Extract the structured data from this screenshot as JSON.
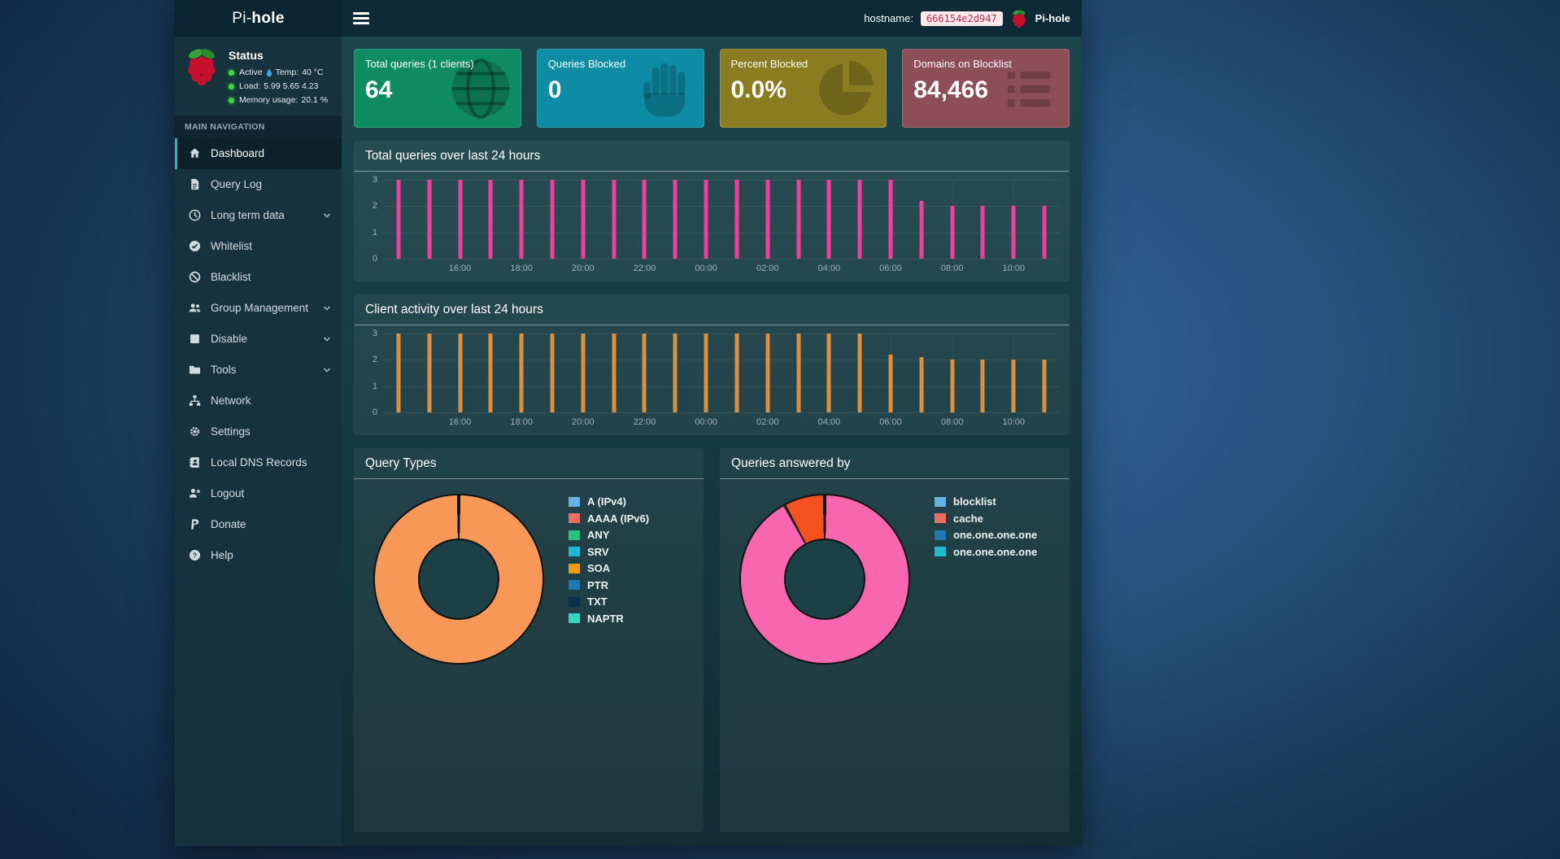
{
  "topbar": {
    "brand_prefix": "Pi-",
    "brand_bold": "hole",
    "hostname_label": "hostname:",
    "hostname_value": "666154e2d947",
    "product_name": "Pi-hole"
  },
  "sidebar": {
    "status": {
      "title": "Status",
      "active_label": "Active",
      "temp_label": "Temp:",
      "temp_value": "40 °C",
      "load_label": "Load:",
      "load_values": "5.99  5.65  4.23",
      "memory_label": "Memory usage:",
      "memory_value": "20.1 %"
    },
    "section_label": "MAIN NAVIGATION",
    "items": [
      {
        "label": "Dashboard",
        "icon": "home-icon",
        "active": true
      },
      {
        "label": "Query Log",
        "icon": "file-icon"
      },
      {
        "label": "Long term data",
        "icon": "clock-icon",
        "expandable": true
      },
      {
        "label": "Whitelist",
        "icon": "check-circle-icon"
      },
      {
        "label": "Blacklist",
        "icon": "ban-icon"
      },
      {
        "label": "Group Management",
        "icon": "users-icon",
        "expandable": true
      },
      {
        "label": "Disable",
        "icon": "stop-icon",
        "expandable": true
      },
      {
        "label": "Tools",
        "icon": "folder-icon",
        "expandable": true
      },
      {
        "label": "Network",
        "icon": "network-icon"
      },
      {
        "label": "Settings",
        "icon": "gears-icon"
      },
      {
        "label": "Local DNS Records",
        "icon": "address-book-icon"
      },
      {
        "label": "Logout",
        "icon": "user-times-icon"
      },
      {
        "label": "Donate",
        "icon": "paypal-icon"
      },
      {
        "label": "Help",
        "icon": "question-circle-icon"
      }
    ]
  },
  "cards": [
    {
      "title": "Total queries (1 clients)",
      "value": "64",
      "color": "#0f8c62",
      "icon": "globe-icon"
    },
    {
      "title": "Queries Blocked",
      "value": "0",
      "color": "#0e8ca6",
      "icon": "hand-icon"
    },
    {
      "title": "Percent Blocked",
      "value": "0.0%",
      "color": "#8c7c21",
      "icon": "pie-chart-icon"
    },
    {
      "title": "Domains on Blocklist",
      "value": "84,466",
      "color": "#8e4e58",
      "icon": "list-icon"
    }
  ],
  "chart_data": [
    {
      "type": "bar",
      "title": "Total queries over last 24 hours",
      "x": [
        "14:00",
        "15:00",
        "16:00",
        "17:00",
        "18:00",
        "19:00",
        "20:00",
        "21:00",
        "22:00",
        "23:00",
        "00:00",
        "01:00",
        "02:00",
        "03:00",
        "04:00",
        "05:00",
        "06:00",
        "07:00",
        "08:00",
        "09:00",
        "10:00",
        "11:00"
      ],
      "values": [
        3,
        3,
        3,
        3,
        3,
        3,
        3,
        3,
        3,
        3,
        3,
        3,
        3,
        3,
        3,
        3,
        3,
        2.2,
        2,
        2,
        2,
        2
      ],
      "ticks": [
        {
          "i": 2,
          "label": "16:00"
        },
        {
          "i": 4,
          "label": "18:00"
        },
        {
          "i": 6,
          "label": "20:00"
        },
        {
          "i": 8,
          "label": "22:00"
        },
        {
          "i": 10,
          "label": "00:00"
        },
        {
          "i": 12,
          "label": "02:00"
        },
        {
          "i": 14,
          "label": "04:00"
        },
        {
          "i": 16,
          "label": "06:00"
        },
        {
          "i": 18,
          "label": "08:00"
        },
        {
          "i": 20,
          "label": "10:00"
        }
      ],
      "ylim": [
        0,
        3
      ],
      "yticks": [
        0,
        1,
        2,
        3
      ],
      "bar_color": "#f23f9d",
      "grid": true,
      "legend_position": "none"
    },
    {
      "type": "bar",
      "title": "Client activity over last 24 hours",
      "x": [
        "14:00",
        "15:00",
        "16:00",
        "17:00",
        "18:00",
        "19:00",
        "20:00",
        "21:00",
        "22:00",
        "23:00",
        "00:00",
        "01:00",
        "02:00",
        "03:00",
        "04:00",
        "05:00",
        "06:00",
        "07:00",
        "08:00",
        "09:00",
        "10:00",
        "11:00"
      ],
      "values": [
        3,
        3,
        3,
        3,
        3,
        3,
        3,
        3,
        3,
        3,
        3,
        3,
        3,
        3,
        3,
        3,
        2.2,
        2.1,
        2,
        2,
        2,
        2
      ],
      "ticks": [
        {
          "i": 2,
          "label": "16:00"
        },
        {
          "i": 4,
          "label": "18:00"
        },
        {
          "i": 6,
          "label": "20:00"
        },
        {
          "i": 8,
          "label": "22:00"
        },
        {
          "i": 10,
          "label": "00:00"
        },
        {
          "i": 12,
          "label": "02:00"
        },
        {
          "i": 14,
          "label": "04:00"
        },
        {
          "i": 16,
          "label": "06:00"
        },
        {
          "i": 18,
          "label": "08:00"
        },
        {
          "i": 20,
          "label": "10:00"
        }
      ],
      "ylim": [
        0,
        3
      ],
      "yticks": [
        0,
        1,
        2,
        3
      ],
      "bar_color": "#dd8f3e",
      "grid": true,
      "legend_position": "none"
    },
    {
      "type": "pie",
      "title": "Query Types",
      "cutout": "50%",
      "legend_position": "right",
      "slices": [
        {
          "label": "SOA",
          "value": 100,
          "color": "#f79859"
        }
      ],
      "legend": [
        {
          "label": "A (IPv4)",
          "color": "#68b2e3"
        },
        {
          "label": "AAAA (IPv6)",
          "color": "#ef6e63"
        },
        {
          "label": "ANY",
          "color": "#28c180"
        },
        {
          "label": "SRV",
          "color": "#1fb9d4"
        },
        {
          "label": "SOA",
          "color": "#f39c12"
        },
        {
          "label": "PTR",
          "color": "#1f77b4"
        },
        {
          "label": "TXT",
          "color": "#0c2f4c"
        },
        {
          "label": "NAPTR",
          "color": "#38d4c2"
        }
      ]
    },
    {
      "type": "pie",
      "title": "Queries answered by",
      "cutout": "50%",
      "legend_position": "right",
      "slices": [
        {
          "label": "one.one.one.one",
          "value": 92,
          "color": "#f766ae"
        },
        {
          "label": "cache",
          "value": 8,
          "color": "#f4511e"
        }
      ],
      "legend": [
        {
          "label": "blocklist",
          "color": "#68b2e3"
        },
        {
          "label": "cache",
          "color": "#ef6e63"
        },
        {
          "label": "one.one.one.one",
          "color": "#1f77b4"
        },
        {
          "label": "one.one.one.one",
          "color": "#1fb9d4"
        }
      ]
    }
  ]
}
